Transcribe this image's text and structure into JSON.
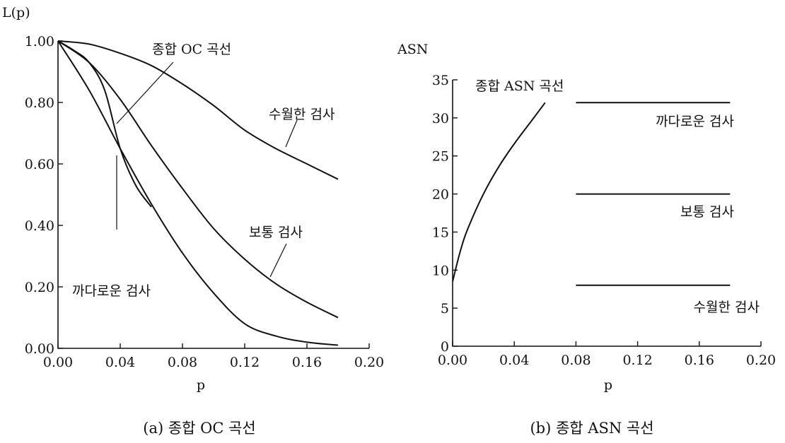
{
  "chart_data": [
    {
      "type": "line",
      "ylabel": "L(p)",
      "xlabel": "p",
      "caption": "(a) 종합 OC 곡선",
      "xlim": [
        0,
        0.2
      ],
      "ylim": [
        0,
        1
      ],
      "xticks": [
        "0.00",
        "0.04",
        "0.08",
        "0.12",
        "0.16",
        "0.20"
      ],
      "yticks": [
        "0.00",
        "0.20",
        "0.40",
        "0.60",
        "0.80",
        "1.00"
      ],
      "series": [
        {
          "name": "수월한 검사",
          "x": [
            0,
            0.02,
            0.04,
            0.06,
            0.08,
            0.1,
            0.12,
            0.14,
            0.16,
            0.18
          ],
          "y": [
            1.0,
            0.99,
            0.96,
            0.92,
            0.86,
            0.79,
            0.71,
            0.65,
            0.6,
            0.55
          ]
        },
        {
          "name": "보통 검사",
          "x": [
            0,
            0.02,
            0.04,
            0.06,
            0.08,
            0.1,
            0.12,
            0.14,
            0.16,
            0.18
          ],
          "y": [
            1.0,
            0.93,
            0.81,
            0.66,
            0.52,
            0.39,
            0.29,
            0.21,
            0.15,
            0.1
          ]
        },
        {
          "name": "까다로운 검사",
          "x": [
            0,
            0.02,
            0.04,
            0.06,
            0.08,
            0.1,
            0.12,
            0.14,
            0.16,
            0.18
          ],
          "y": [
            1.0,
            0.84,
            0.65,
            0.47,
            0.31,
            0.18,
            0.08,
            0.04,
            0.02,
            0.01
          ]
        },
        {
          "name": "종합 OC 곡선",
          "x": [
            0,
            0.01,
            0.02,
            0.03,
            0.04,
            0.05,
            0.06
          ],
          "y": [
            1.0,
            0.97,
            0.93,
            0.84,
            0.65,
            0.53,
            0.46
          ]
        }
      ],
      "annotations": [
        "종합 OC 곡선",
        "수월한 검사",
        "보통 검사",
        "까다로운 검사"
      ]
    },
    {
      "type": "line",
      "ylabel": "ASN",
      "xlabel": "p",
      "caption": "(b) 종합 ASN 곡선",
      "xlim": [
        0,
        0.2
      ],
      "ylim": [
        0,
        35
      ],
      "xticks": [
        "0.00",
        "0.04",
        "0.08",
        "0.12",
        "0.16",
        "0.20"
      ],
      "yticks": [
        "0",
        "5",
        "10",
        "15",
        "20",
        "25",
        "30",
        "35"
      ],
      "series": [
        {
          "name": "종합 ASN 곡선",
          "x": [
            0,
            0.005,
            0.01,
            0.02,
            0.03,
            0.04,
            0.05,
            0.06
          ],
          "y": [
            8.5,
            12.5,
            15.5,
            20.0,
            23.6,
            26.6,
            29.3,
            32.0
          ]
        },
        {
          "name": "까다로운 검사",
          "x": [
            0.08,
            0.18
          ],
          "y": [
            32,
            32
          ]
        },
        {
          "name": "보통 검사",
          "x": [
            0.08,
            0.18
          ],
          "y": [
            20,
            20
          ]
        },
        {
          "name": "수월한 검사",
          "x": [
            0.08,
            0.18
          ],
          "y": [
            8,
            8
          ]
        }
      ],
      "annotations": [
        "종합 ASN 곡선",
        "까다로운 검사",
        "보통 검사",
        "수월한 검사"
      ]
    }
  ]
}
